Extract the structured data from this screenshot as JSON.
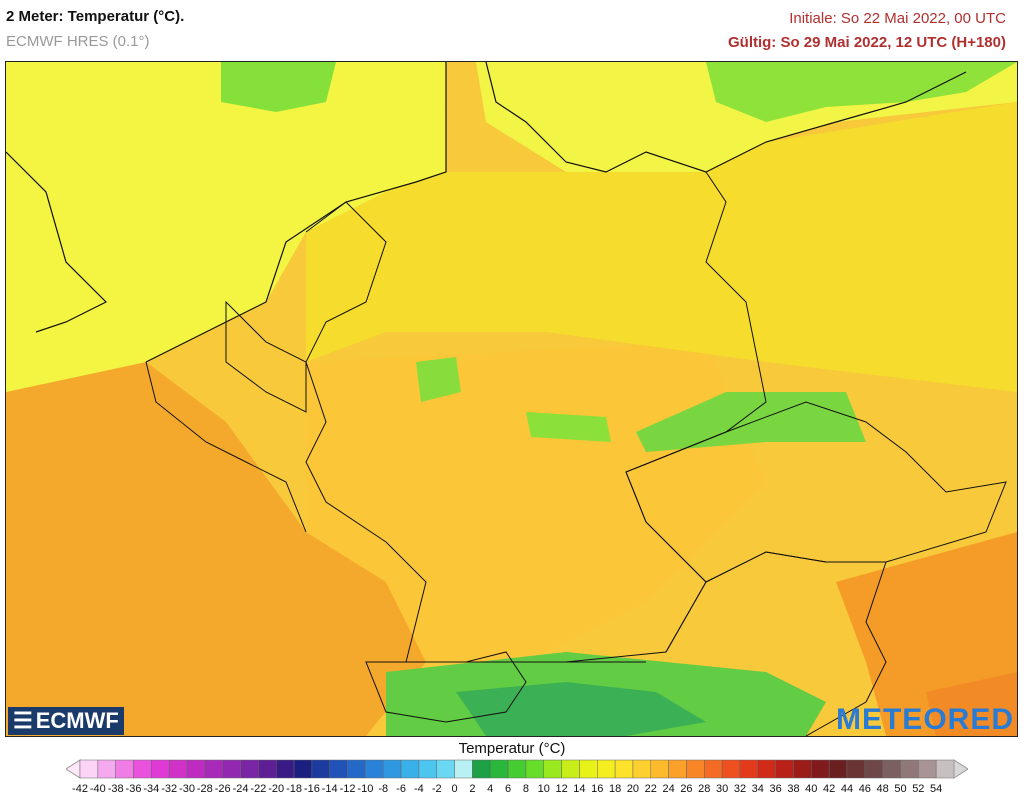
{
  "header": {
    "title": "2 Meter: Temperatur (°C).",
    "model": "ECMWF HRES (0.1°)",
    "init": "Initiale: So 22 Mai 2022, 00 UTC",
    "valid": "Gültig: So 29 Mai 2022, 12 UTC (H+180)"
  },
  "logos": {
    "left": "ECMWF",
    "right": "METEORED"
  },
  "legend": {
    "title": "Temperatur (°C)",
    "ticks": [
      "-42",
      "-40",
      "-38",
      "-36",
      "-34",
      "-32",
      "-30",
      "-28",
      "-26",
      "-24",
      "-22",
      "-20",
      "-18",
      "-16",
      "-14",
      "-12",
      "-10",
      "-8",
      "-6",
      "-4",
      "-2",
      "0",
      "2",
      "4",
      "6",
      "8",
      "10",
      "12",
      "14",
      "16",
      "18",
      "20",
      "22",
      "24",
      "26",
      "28",
      "30",
      "32",
      "34",
      "36",
      "38",
      "40",
      "42",
      "44",
      "46",
      "48",
      "50",
      "52",
      "54"
    ],
    "colors": [
      "#fbd4f6",
      "#f5a9ee",
      "#f07de6",
      "#ea52de",
      "#e03ad6",
      "#d032c8",
      "#bd2bc0",
      "#a82ab8",
      "#9228b0",
      "#7a25a4",
      "#5e1f95",
      "#3a1a85",
      "#1a1f80",
      "#1d3a9e",
      "#2152b8",
      "#2468c8",
      "#2a82d8",
      "#3098e0",
      "#3ab0e8",
      "#4cc6ef",
      "#6ad8f2",
      "#b8f0f4",
      "#1ea046",
      "#2ab83c",
      "#44cc30",
      "#66dd28",
      "#9ae81e",
      "#c8ee1a",
      "#e6f218",
      "#f4ee20",
      "#fce22a",
      "#fdd030",
      "#fcba2c",
      "#fba028",
      "#f88626",
      "#f46c24",
      "#ee5020",
      "#e43a1c",
      "#d02a18",
      "#b82018",
      "#9c1c18",
      "#801a1c",
      "#6a2020",
      "#6a3434",
      "#6e4848",
      "#7c6060",
      "#907878",
      "#a89494",
      "#c8c0c0"
    ]
  },
  "map": {
    "region": "Mitteleuropa",
    "background": "#f7d21e"
  }
}
